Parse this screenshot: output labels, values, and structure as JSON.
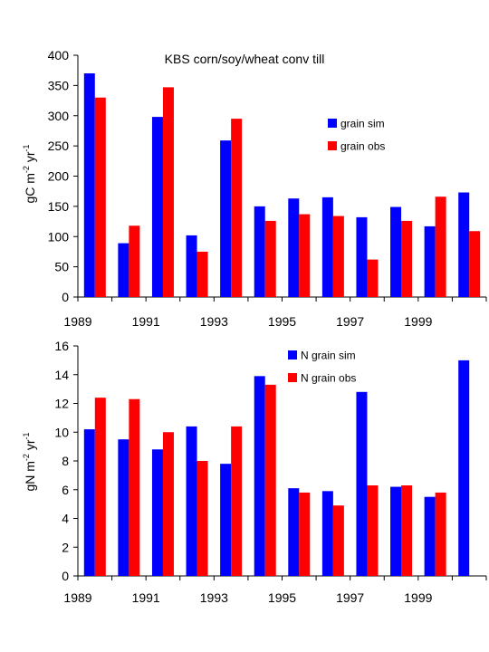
{
  "chart_data": [
    {
      "type": "bar",
      "title": "KBS corn/soy/wheat conv till",
      "ylabel": "gC m-2 yr-1",
      "ylim": [
        0,
        400
      ],
      "yticks": [
        0,
        50,
        100,
        150,
        200,
        250,
        300,
        350,
        400
      ],
      "categories": [
        1989,
        1990,
        1991,
        1992,
        1993,
        1994,
        1995,
        1996,
        1997,
        1998,
        1999,
        2000
      ],
      "xtick_labels": [
        "1989",
        "1991",
        "1993",
        "1995",
        "1997",
        "1999"
      ],
      "legend_position": "top-right",
      "series": [
        {
          "name": "grain sim",
          "color": "#0000ff",
          "values": [
            370,
            89,
            298,
            102,
            259,
            150,
            163,
            165,
            132,
            149,
            117,
            173
          ]
        },
        {
          "name": "grain obs",
          "color": "#ff0000",
          "values": [
            330,
            118,
            347,
            75,
            295,
            126,
            137,
            134,
            62,
            126,
            166,
            109
          ]
        }
      ]
    },
    {
      "type": "bar",
      "title": "",
      "ylabel": "gN m-2 yr-1",
      "ylim": [
        0,
        16
      ],
      "yticks": [
        0,
        2,
        4,
        6,
        8,
        10,
        12,
        14,
        16
      ],
      "categories": [
        1989,
        1990,
        1991,
        1992,
        1993,
        1994,
        1995,
        1996,
        1997,
        1998,
        1999,
        2000
      ],
      "xtick_labels": [
        "1989",
        "1991",
        "1993",
        "1995",
        "1997",
        "1999"
      ],
      "legend_position": "top-center",
      "series": [
        {
          "name": "N grain sim",
          "color": "#0000ff",
          "values": [
            10.2,
            9.5,
            8.8,
            10.4,
            7.8,
            13.9,
            6.1,
            5.9,
            12.8,
            6.2,
            5.5,
            15.0
          ]
        },
        {
          "name": "N grain obs",
          "color": "#ff0000",
          "values": [
            12.4,
            12.3,
            10.0,
            8.0,
            10.4,
            13.3,
            5.8,
            4.9,
            6.3,
            6.3,
            5.8,
            null
          ]
        }
      ]
    }
  ]
}
